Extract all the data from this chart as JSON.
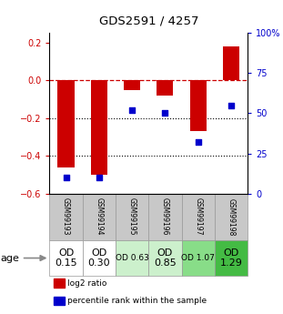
{
  "title": "GDS2591 / 4257",
  "samples": [
    "GSM99193",
    "GSM99194",
    "GSM99195",
    "GSM99196",
    "GSM99197",
    "GSM99198"
  ],
  "log2_ratio": [
    -0.46,
    -0.5,
    -0.05,
    -0.08,
    -0.27,
    0.18
  ],
  "percentile_rank": [
    10,
    10,
    52,
    50,
    32,
    55
  ],
  "age_labels": [
    "OD\n0.15",
    "OD\n0.30",
    "OD 0.63",
    "OD\n0.85",
    "OD 1.07",
    "OD\n1.29"
  ],
  "age_bg_colors": [
    "#ffffff",
    "#ffffff",
    "#ccf0cc",
    "#ccf0cc",
    "#88dd88",
    "#44bb44"
  ],
  "age_fontsize": [
    8,
    8,
    6.5,
    8,
    6.5,
    8
  ],
  "ylim_left": [
    -0.6,
    0.25
  ],
  "ylim_right": [
    0,
    100
  ],
  "yticks_left": [
    -0.6,
    -0.4,
    -0.2,
    0.0,
    0.2
  ],
  "yticks_right": [
    0,
    25,
    50,
    75,
    100
  ],
  "ytick_labels_right": [
    "0",
    "25",
    "50",
    "75",
    "100%"
  ],
  "red_color": "#cc0000",
  "blue_color": "#0000cc",
  "bar_width": 0.5,
  "dotted_line_y": [
    -0.2,
    -0.4
  ],
  "dashed_line_y": 0.0,
  "sample_bg": "#c8c8c8",
  "legend_items": [
    {
      "color": "#cc0000",
      "label": "log2 ratio"
    },
    {
      "color": "#0000cc",
      "label": "percentile rank within the sample"
    }
  ]
}
